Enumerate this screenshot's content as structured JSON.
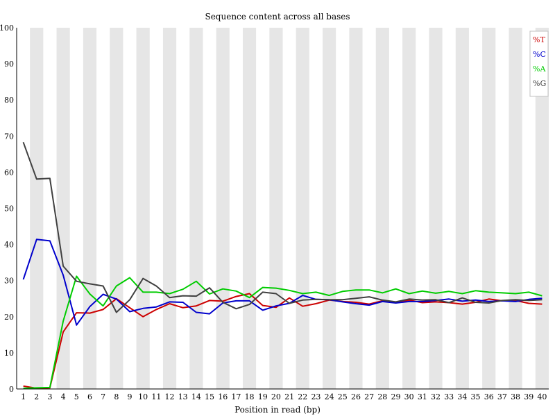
{
  "chart_data": {
    "type": "line",
    "title": "Sequence content across all bases",
    "xlabel": "Position in read (bp)",
    "ylabel": "",
    "x": [
      1,
      2,
      3,
      4,
      5,
      6,
      7,
      8,
      9,
      10,
      11,
      12,
      13,
      14,
      15,
      16,
      17,
      18,
      19,
      20,
      21,
      22,
      23,
      24,
      25,
      26,
      27,
      28,
      29,
      30,
      31,
      32,
      33,
      34,
      35,
      36,
      37,
      38,
      39,
      40
    ],
    "ylim": [
      0,
      100
    ],
    "yticks": [
      0,
      10,
      20,
      30,
      40,
      50,
      60,
      70,
      80,
      90,
      100
    ],
    "grid": "alternating vertical bands",
    "band_color": "#e6e6e6",
    "legend_position": "top-right",
    "series": [
      {
        "name": "%T",
        "color": "#cc0000",
        "values": [
          0.8,
          0.2,
          0.3,
          15.8,
          21.1,
          21.0,
          22.0,
          25.0,
          22.5,
          20.0,
          22.0,
          23.6,
          22.5,
          23.0,
          24.5,
          24.3,
          25.6,
          26.4,
          23.1,
          22.6,
          25.2,
          22.9,
          23.6,
          24.6,
          24.2,
          24.0,
          23.5,
          24.4,
          23.9,
          24.6,
          23.9,
          24.1,
          23.9,
          23.5,
          24.0,
          24.9,
          24.4,
          24.5,
          23.7,
          23.5
        ]
      },
      {
        "name": "%C",
        "color": "#0000cc",
        "values": [
          30.3,
          41.4,
          41.0,
          31.5,
          17.7,
          22.8,
          26.2,
          24.9,
          21.4,
          22.3,
          22.7,
          24.1,
          24.0,
          21.2,
          20.8,
          23.8,
          24.4,
          24.4,
          21.8,
          23.0,
          23.7,
          25.9,
          24.8,
          24.7,
          24.1,
          23.6,
          23.2,
          24.2,
          23.8,
          24.2,
          24.2,
          24.5,
          24.9,
          24.3,
          24.6,
          24.2,
          24.4,
          24.2,
          24.8,
          25.1
        ]
      },
      {
        "name": "%A",
        "color": "#00cc00",
        "values": [
          0.2,
          0.3,
          0.4,
          18.8,
          31.2,
          26.3,
          23.0,
          28.5,
          30.8,
          26.8,
          26.8,
          26.4,
          27.6,
          29.8,
          26.3,
          27.7,
          27.1,
          25.3,
          28.1,
          27.9,
          27.3,
          26.4,
          26.8,
          25.9,
          27.0,
          27.4,
          27.4,
          26.6,
          27.7,
          26.4,
          27.1,
          26.5,
          27.0,
          26.4,
          27.2,
          26.8,
          26.6,
          26.4,
          26.8,
          25.8
        ]
      },
      {
        "name": "%G",
        "color": "#404040",
        "values": [
          68.3,
          58.1,
          58.3,
          34.0,
          29.8,
          29.1,
          28.5,
          21.2,
          24.7,
          30.6,
          28.5,
          25.3,
          25.8,
          25.7,
          28.0,
          24.0,
          22.2,
          23.4,
          26.8,
          26.4,
          23.7,
          24.6,
          24.8,
          24.7,
          24.7,
          25.1,
          25.5,
          24.6,
          24.1,
          24.9,
          24.6,
          24.7,
          23.9,
          25.2,
          24.0,
          23.8,
          24.5,
          24.7,
          24.5,
          24.7
        ]
      }
    ]
  }
}
